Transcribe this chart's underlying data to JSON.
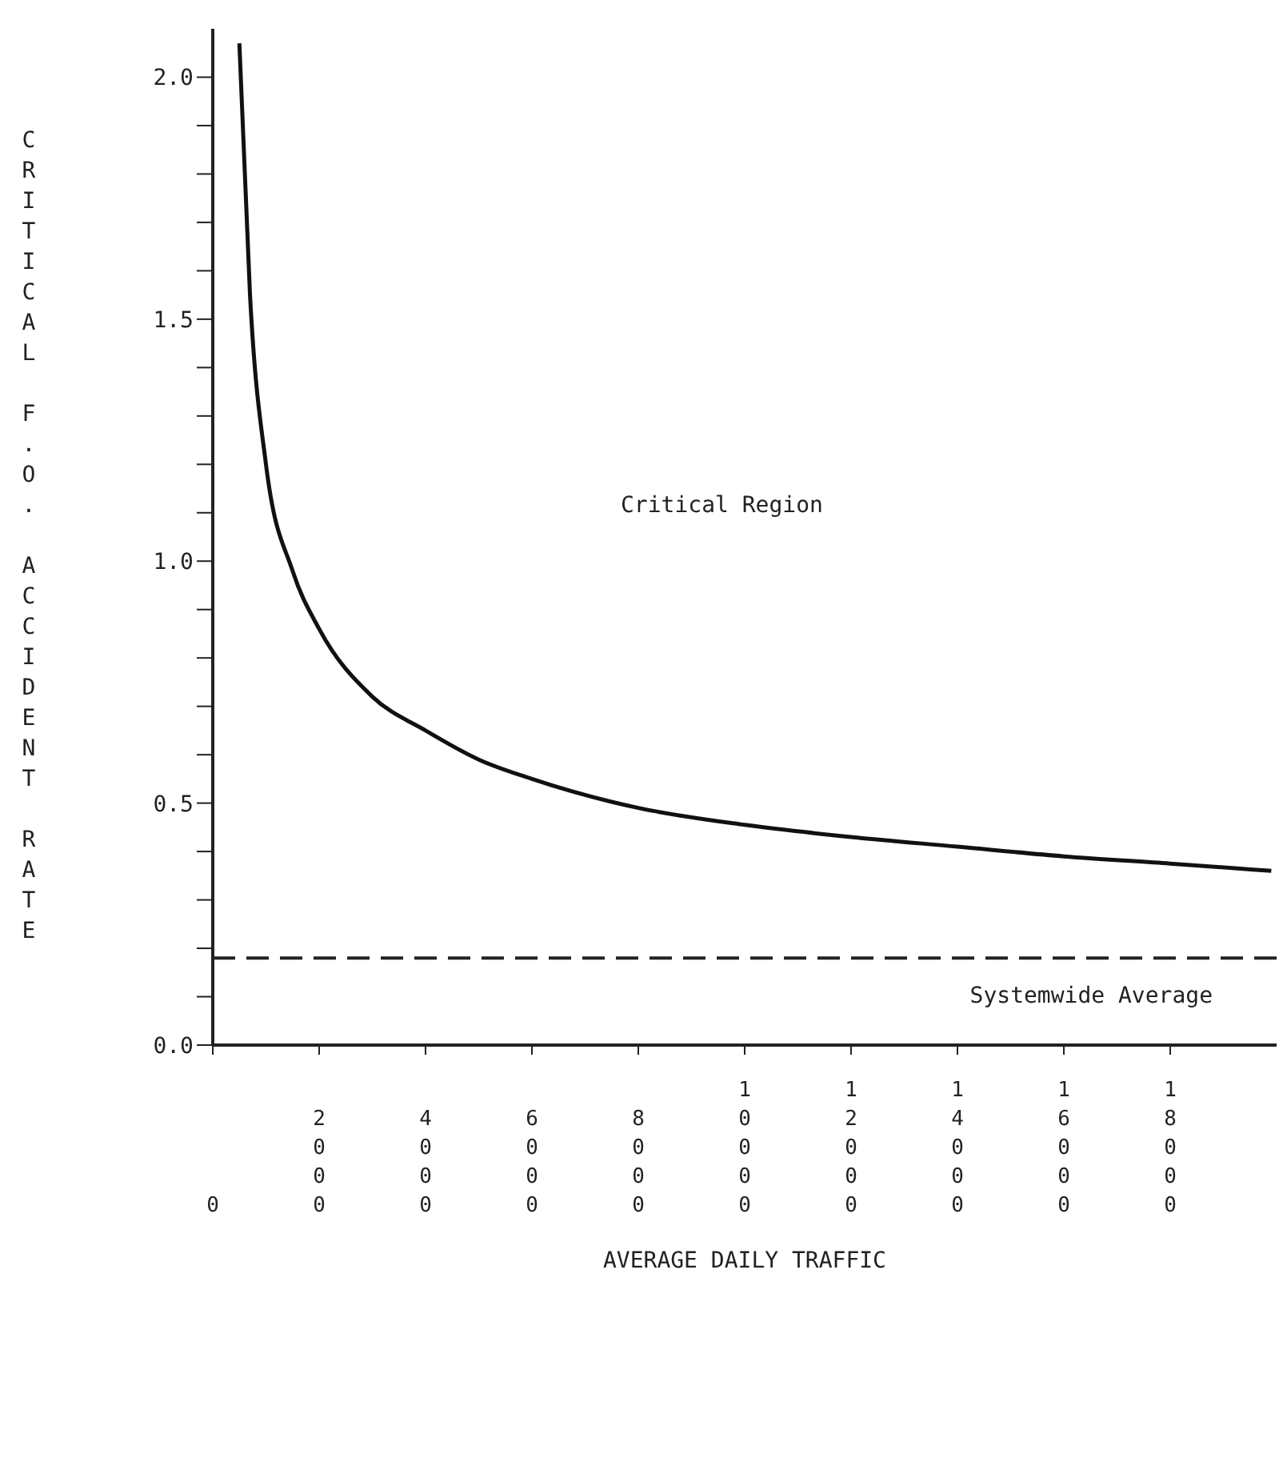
{
  "chart_data": {
    "type": "line",
    "xlabel": "AVERAGE DAILY TRAFFIC",
    "ylabel": "CRITICAL F.O. ACCIDENT RATE",
    "x": [
      500,
      700,
      1000,
      1500,
      2000,
      3000,
      4000,
      5000,
      6000,
      8000,
      10000,
      12000,
      14000,
      16000,
      18000,
      19900
    ],
    "series": [
      {
        "color": "#111111",
        "values": [
          2.07,
          1.55,
          1.2,
          0.98,
          0.86,
          0.72,
          0.65,
          0.59,
          0.55,
          0.49,
          0.455,
          0.43,
          0.41,
          0.39,
          0.375,
          0.36
        ]
      }
    ],
    "xlim": [
      0,
      20000
    ],
    "xticks": [
      0,
      2000,
      4000,
      6000,
      8000,
      10000,
      12000,
      14000,
      16000,
      18000
    ],
    "ylim": [
      0,
      2.1
    ],
    "yticks": [
      {
        "value": 0,
        "label": "0.0"
      },
      {
        "value": 0.1,
        "label": null
      },
      {
        "value": 0.2,
        "label": null
      },
      {
        "value": 0.3,
        "label": null
      },
      {
        "value": 0.4,
        "label": null
      },
      {
        "value": 0.5,
        "label": "0.5"
      },
      {
        "value": 0.6,
        "label": null
      },
      {
        "value": 0.7,
        "label": null
      },
      {
        "value": 0.8,
        "label": null
      },
      {
        "value": 0.9,
        "label": null
      },
      {
        "value": 1.0,
        "label": "1.0"
      },
      {
        "value": 1.1,
        "label": null
      },
      {
        "value": 1.2,
        "label": null
      },
      {
        "value": 1.3,
        "label": null
      },
      {
        "value": 1.4,
        "label": null
      },
      {
        "value": 1.5,
        "label": "1.5"
      },
      {
        "value": 1.6,
        "label": null
      },
      {
        "value": 1.7,
        "label": null
      },
      {
        "value": 1.8,
        "label": null
      },
      {
        "value": 1.9,
        "label": null
      },
      {
        "value": 2.0,
        "label": "2.0"
      }
    ],
    "ref_lines": [
      {
        "axis": "y",
        "value": 0.18,
        "label": "Systemwide Average",
        "color": "#222222",
        "line_style": "dashed"
      }
    ],
    "annotations": [
      "Critical Region"
    ],
    "grid": false,
    "legend": false,
    "marker": "none",
    "line_style": "solid"
  }
}
